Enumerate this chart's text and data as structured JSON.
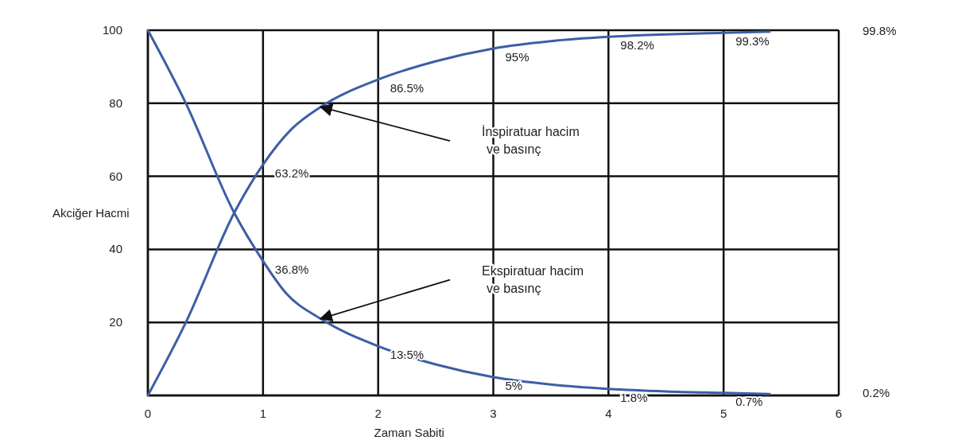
{
  "chart_data": {
    "type": "line",
    "xlabel": "Zaman Sabiti",
    "ylabel": "Akciğer Hacmi",
    "xlim": [
      0,
      6
    ],
    "ylim": [
      0,
      100
    ],
    "xticks": [
      0,
      1,
      2,
      3,
      4,
      5,
      6
    ],
    "yticks": [
      {
        "value": 0,
        "label": null
      },
      20,
      40,
      60,
      80,
      100
    ],
    "grid": true,
    "marker": "none",
    "line_style": "solid",
    "series": [
      {
        "color": "#3d5ea6",
        "x": [
          0,
          0.33,
          0.75,
          1,
          1.25,
          1.5,
          2,
          2.5,
          3,
          3.5,
          4,
          5,
          5.4
        ],
        "values": [
          0,
          20,
          50,
          63.2,
          73,
          79,
          86.5,
          91.5,
          95,
          97,
          98.2,
          99.3,
          99.6
        ]
      },
      {
        "color": "#3d5ea6",
        "x": [
          0,
          0.33,
          0.75,
          1,
          1.2,
          1.5,
          2,
          2.5,
          3,
          3.5,
          4,
          4.5,
          5,
          5.4
        ],
        "values": [
          100,
          80,
          50,
          36.8,
          28,
          21,
          13.5,
          8.5,
          5,
          3,
          1.8,
          1.1,
          0.7,
          0.4
        ]
      }
    ],
    "annotations": [
      {
        "text": "63.2%",
        "x": 1,
        "y": 63.2
      },
      {
        "text": "86.5%",
        "x": 2,
        "y": 86.5
      },
      {
        "text": "95%",
        "x": 3,
        "y": 95
      },
      {
        "text": "98.2%",
        "x": 4,
        "y": 98.2
      },
      {
        "text": "99.3%",
        "x": 5,
        "y": 99.3
      },
      "99.8%",
      {
        "text": "36.8%",
        "x": 1,
        "y": 36.8
      },
      {
        "text": "13.5%",
        "x": 2,
        "y": 13.5
      },
      {
        "text": "5%",
        "x": 3,
        "y": 5
      },
      {
        "text": "1.8%",
        "x": 4,
        "y": 1.8
      },
      {
        "text": "0.7%",
        "x": 5,
        "y": 0.7
      },
      "0.2%",
      "İnspiratuar hacim ve basınç",
      "Ekspiratuar hacim ve basınç"
    ]
  }
}
